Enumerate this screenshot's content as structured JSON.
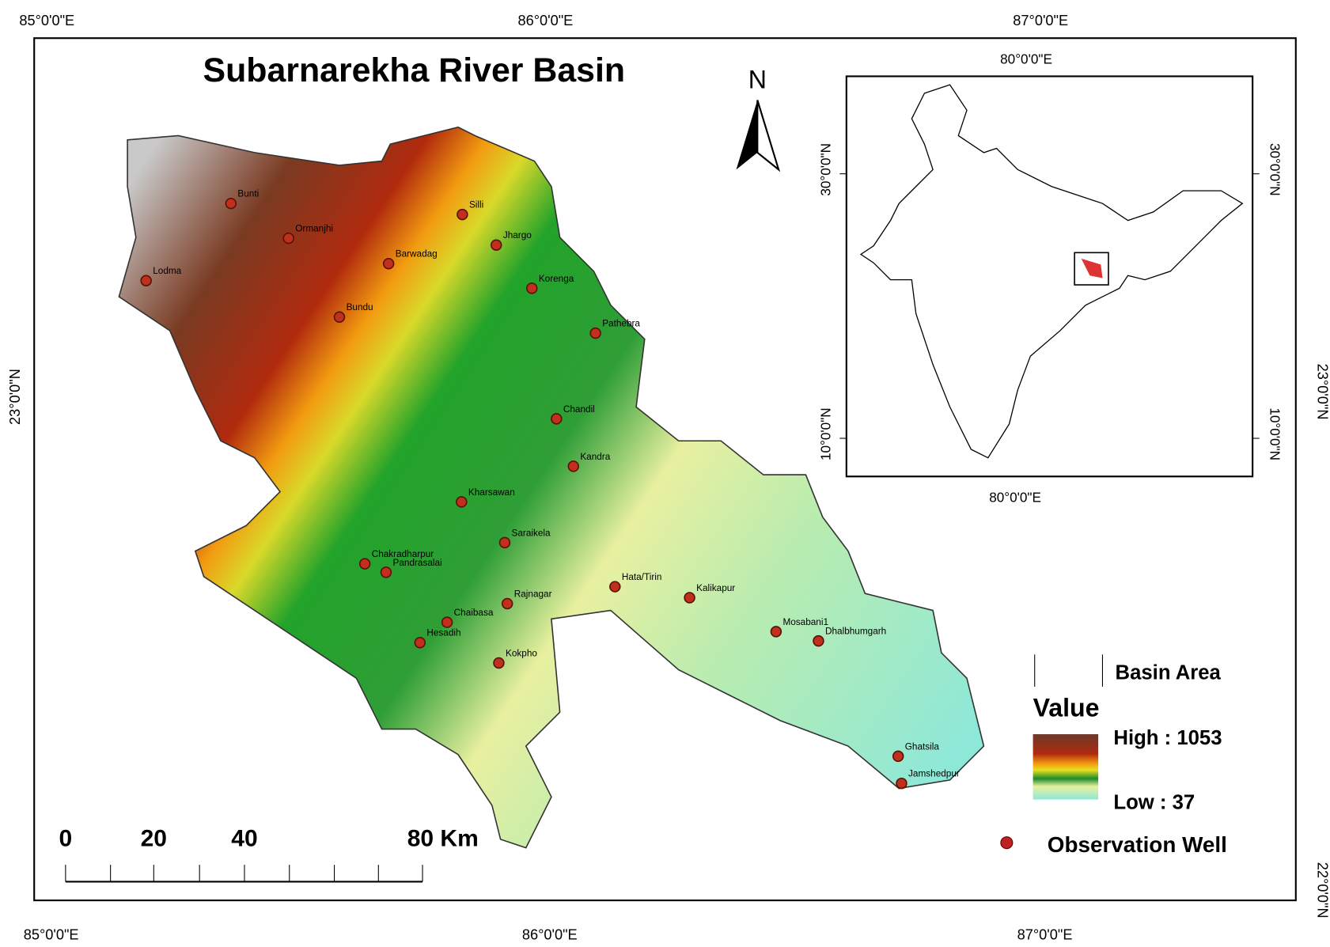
{
  "title": "Subarnarekha River Basin",
  "north": "N",
  "graticule": {
    "top": [
      "85°0'0\"E",
      "86°0'0\"E",
      "87°0'0\"E"
    ],
    "bottom": [
      "85°0'0\"E",
      "86°0'0\"E",
      "87°0'0\"E"
    ],
    "left": [
      "23°0'0\"N"
    ],
    "right": [
      "23°0'0\"N",
      "22°0'0\"N"
    ]
  },
  "inset": {
    "top": "80°0'0\"E",
    "bottom": "80°0'0\"E",
    "left": [
      "30°0'0\"N",
      "10°0'0\"N"
    ],
    "right": [
      "30°0'0\"N",
      "10°0'0\"N"
    ]
  },
  "legend": {
    "basin": "Basin Area",
    "value": "Value",
    "high": "High : 1053",
    "low": "Low : 37",
    "well": "Observation Well"
  },
  "scale": [
    "0",
    "20",
    "40",
    "80 Km"
  ],
  "wells": [
    {
      "name": "Bunti"
    },
    {
      "name": "Ormanjhi"
    },
    {
      "name": "Silli"
    },
    {
      "name": "Jhargo"
    },
    {
      "name": "Barwadag"
    },
    {
      "name": "Lodma"
    },
    {
      "name": "Korenga"
    },
    {
      "name": "Bundu"
    },
    {
      "name": "Pathebra"
    },
    {
      "name": "Chandil"
    },
    {
      "name": "Kandra"
    },
    {
      "name": "Kharsawan"
    },
    {
      "name": "Saraikela"
    },
    {
      "name": "Chakradharpur"
    },
    {
      "name": "Pandrasalai"
    },
    {
      "name": "Hata/Tirin"
    },
    {
      "name": "Kalikapur"
    },
    {
      "name": "Rajnagar"
    },
    {
      "name": "Chaibasa"
    },
    {
      "name": "Hesadih"
    },
    {
      "name": "Mosabani1"
    },
    {
      "name": "Dhalbhumgarh"
    },
    {
      "name": "Kokpho"
    },
    {
      "name": "Ghatsila"
    },
    {
      "name": "Jamshedpur"
    }
  ]
}
